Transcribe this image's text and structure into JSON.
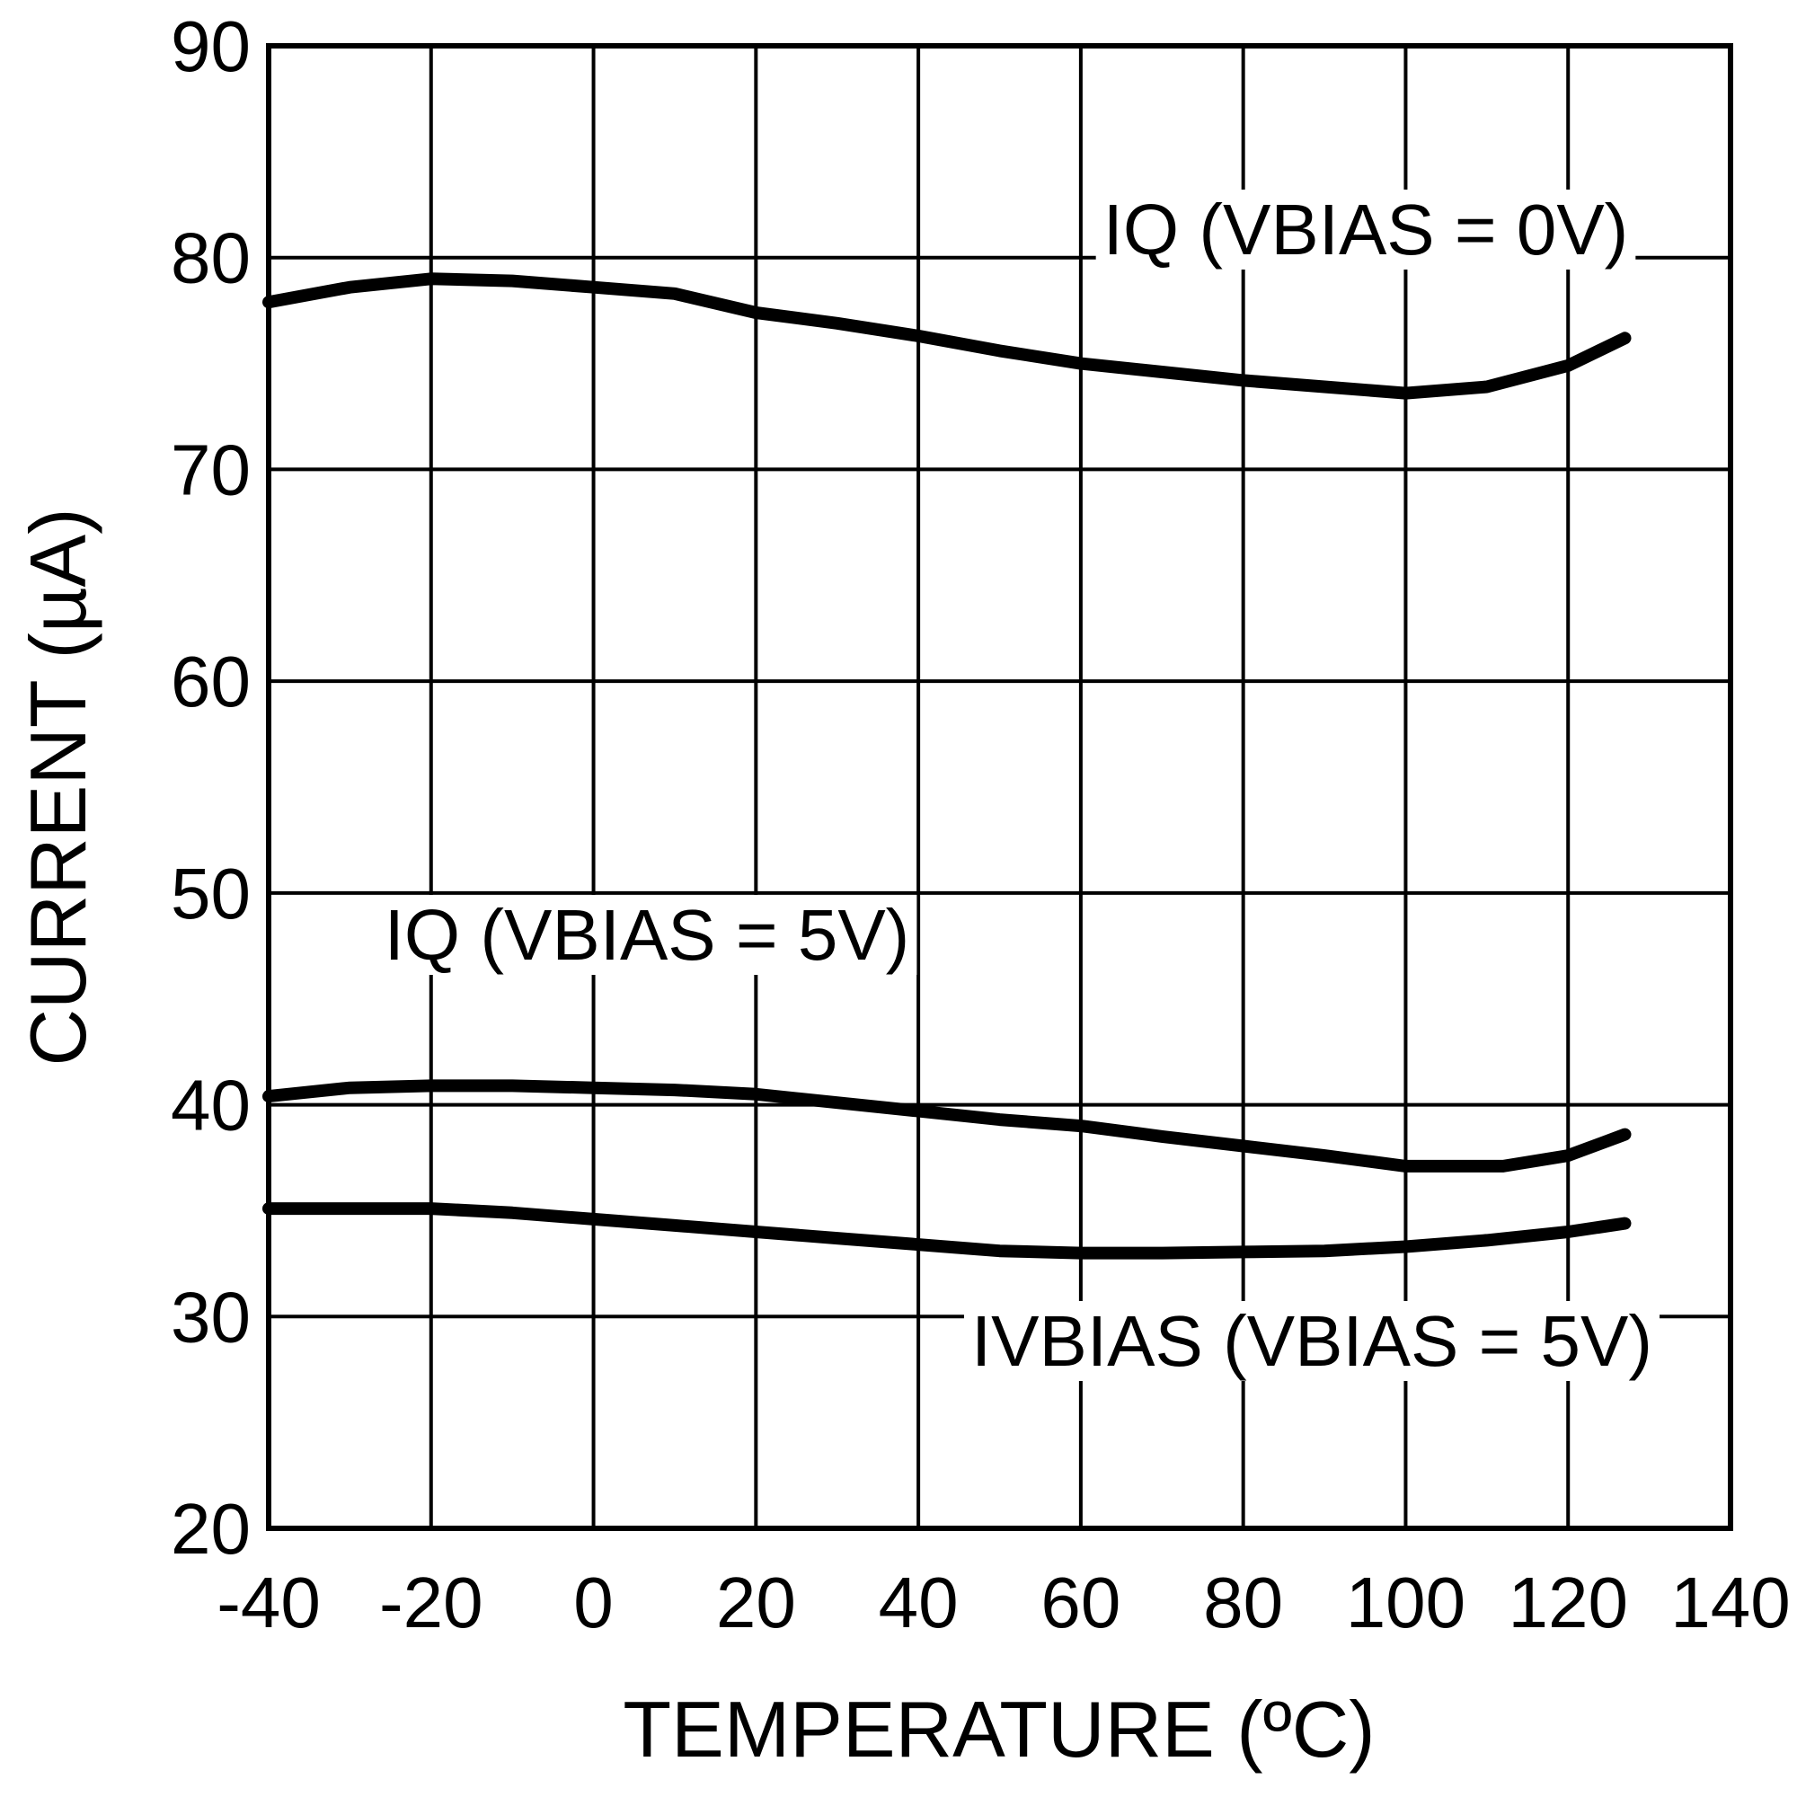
{
  "chart_data": {
    "type": "line",
    "title": "",
    "xlabel": "TEMPERATURE (ºC)",
    "ylabel": "CURRENT (µA)",
    "xlim": [
      -40,
      140
    ],
    "ylim": [
      20,
      90
    ],
    "xticks": [
      -40,
      -20,
      0,
      20,
      40,
      60,
      80,
      100,
      120,
      140
    ],
    "yticks": [
      20,
      30,
      40,
      50,
      60,
      70,
      80,
      90
    ],
    "grid": true,
    "legend": "none (inline labels)",
    "line_color": "#000000",
    "series": [
      {
        "name": "IQ (VBIAS = 0V)",
        "x": [
          -40,
          -30,
          -20,
          -10,
          0,
          10,
          20,
          30,
          40,
          50,
          60,
          70,
          80,
          90,
          100,
          110,
          120,
          127
        ],
        "y": [
          77.9,
          78.6,
          79.0,
          78.9,
          78.6,
          78.3,
          77.4,
          76.9,
          76.3,
          75.6,
          75.0,
          74.6,
          74.2,
          73.9,
          73.6,
          73.9,
          74.9,
          76.2
        ]
      },
      {
        "name": "IQ (VBIAS = 5V)",
        "x": [
          -40,
          -30,
          -20,
          -10,
          0,
          10,
          20,
          30,
          40,
          50,
          60,
          70,
          80,
          90,
          100,
          112,
          120,
          127
        ],
        "y": [
          40.4,
          40.8,
          40.9,
          40.9,
          40.8,
          40.7,
          40.5,
          40.1,
          39.7,
          39.3,
          39.0,
          38.5,
          38.05,
          37.6,
          37.1,
          37.1,
          37.6,
          38.6
        ]
      },
      {
        "name": "IVBIAS (VBIAS = 5V)",
        "x": [
          -40,
          -30,
          -20,
          -10,
          0,
          10,
          20,
          30,
          40,
          50,
          60,
          70,
          80,
          90,
          100,
          110,
          120,
          127
        ],
        "y": [
          35.1,
          35.1,
          35.1,
          34.9,
          34.6,
          34.3,
          34.0,
          33.7,
          33.4,
          33.1,
          33.0,
          33.0,
          33.05,
          33.1,
          33.3,
          33.6,
          34.0,
          34.4
        ]
      }
    ]
  }
}
